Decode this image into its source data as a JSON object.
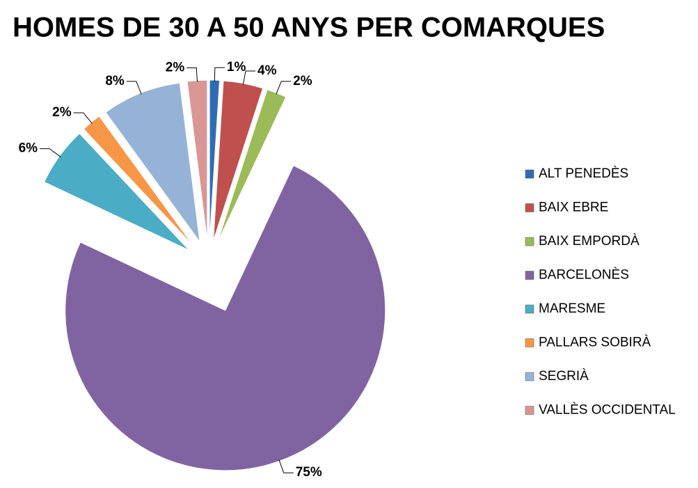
{
  "chart_data": {
    "type": "pie",
    "title": "HOMES DE 30 A 50 ANYS PER COMARQUES",
    "categories": [
      "ALT PENEDÈS",
      "BAIX EBRE",
      "BAIX EMPORDÀ",
      "BARCELONÈS",
      "MARESME",
      "PALLARS SOBIRÀ",
      "SEGRIÀ",
      "VALLÈS OCCIDENTAL"
    ],
    "values": [
      1,
      4,
      2,
      75,
      6,
      2,
      8,
      2
    ],
    "value_labels": [
      "1%",
      "4%",
      "2%",
      "75%",
      "6%",
      "2%",
      "8%",
      "2%"
    ],
    "colors": [
      "#2e6db4",
      "#c0504d",
      "#9bbb59",
      "#8064a2",
      "#4bacc6",
      "#f79646",
      "#95b3d7",
      "#d99694"
    ],
    "legend": "right"
  }
}
